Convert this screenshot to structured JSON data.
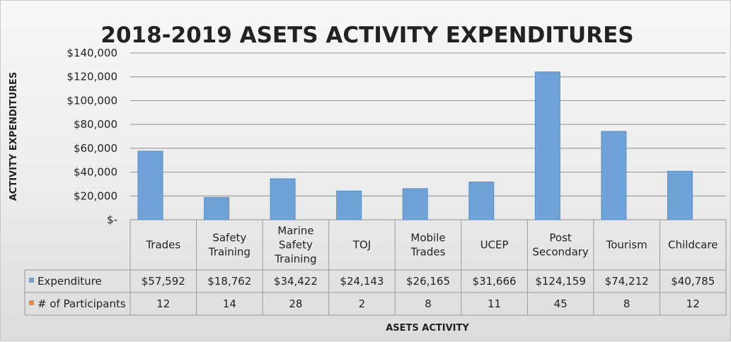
{
  "chart_data": {
    "type": "bar",
    "title": "2018-2019 ASETS ACTIVITY EXPENDITURES",
    "ylabel": "ACTIVITY EXPENDITURES",
    "xlabel": "ASETS ACTIVITY",
    "ylim": [
      0,
      140000
    ],
    "yticks": [
      0,
      20000,
      40000,
      60000,
      80000,
      100000,
      120000,
      140000
    ],
    "ytick_labels": [
      "$-",
      "$20,000",
      "$40,000",
      "$60,000",
      "$80,000",
      "$100,000",
      "$120,000",
      "$140,000"
    ],
    "grid": true,
    "legend": "data table (left of table rows)",
    "categories": [
      [
        "Trades"
      ],
      [
        "Safety",
        "Training"
      ],
      [
        "Marine",
        "Safety",
        "Training"
      ],
      [
        "TOJ"
      ],
      [
        "Mobile",
        "Trades"
      ],
      [
        "UCEP"
      ],
      [
        "Post",
        "Secondary"
      ],
      [
        "Tourism"
      ],
      [
        "Childcare"
      ]
    ],
    "series": [
      {
        "name": "Expenditure",
        "color": "#6fa3d8",
        "values": [
          57592,
          18762,
          34422,
          24143,
          26165,
          31666,
          124159,
          74212,
          40785
        ],
        "labels": [
          "$57,592",
          "$18,762",
          "$34,422",
          "$24,143",
          "$26,165",
          "$31,666",
          "$124,159",
          "$74,212",
          "$40,785"
        ]
      },
      {
        "name": "# of Participants",
        "color": "#ed8b3c",
        "values": [
          12,
          14,
          28,
          2,
          8,
          11,
          45,
          8,
          12
        ],
        "labels": [
          "12",
          "14",
          "28",
          "2",
          "8",
          "11",
          "45",
          "8",
          "12"
        ]
      }
    ]
  }
}
